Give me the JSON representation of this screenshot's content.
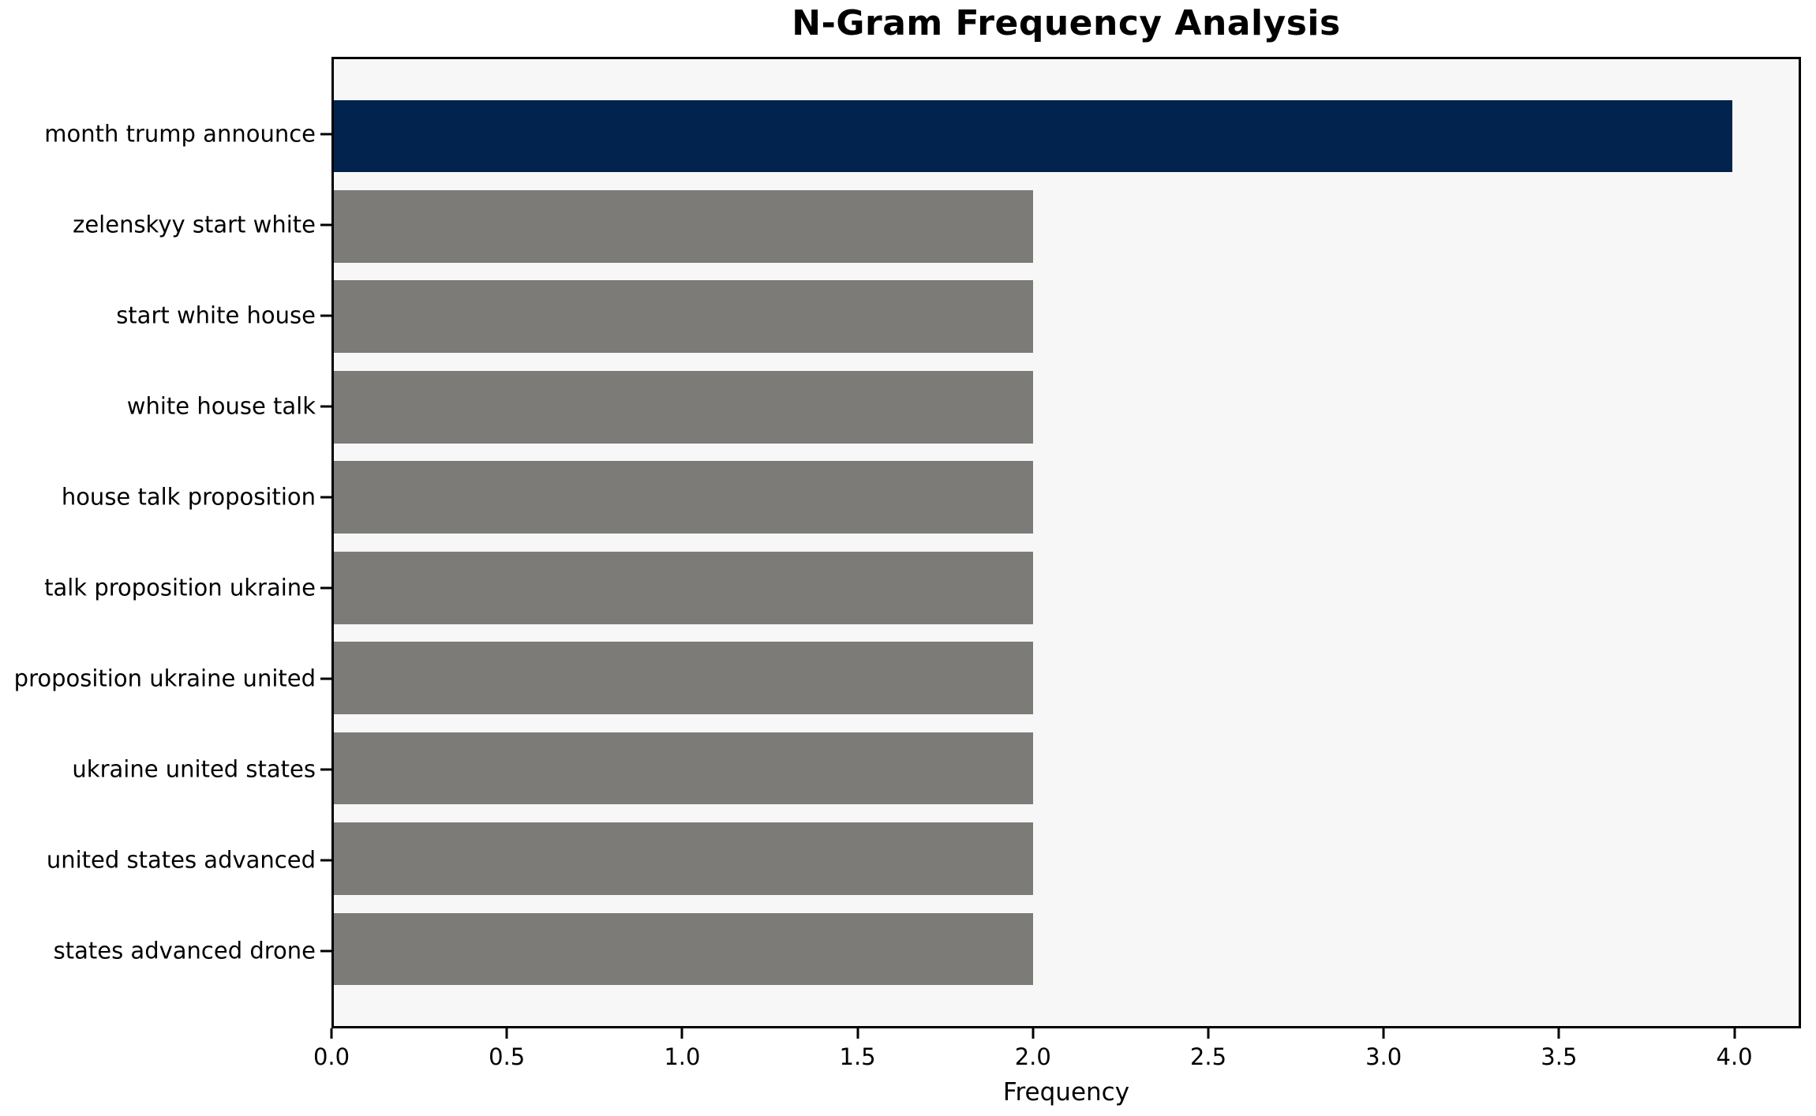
{
  "chart_data": {
    "type": "bar",
    "orientation": "horizontal",
    "title": "N-Gram Frequency Analysis",
    "xlabel": "Frequency",
    "ylabel": "",
    "categories": [
      "month trump announce",
      "zelenskyy start white",
      "start white house",
      "white house talk",
      "house talk proposition",
      "talk proposition ukraine",
      "proposition ukraine united",
      "ukraine united states",
      "united states advanced",
      "states advanced drone"
    ],
    "values": [
      4,
      2,
      2,
      2,
      2,
      2,
      2,
      2,
      2,
      2
    ],
    "bar_colors": [
      "#02234d",
      "#7c7b78",
      "#7c7b78",
      "#7c7b78",
      "#7c7b78",
      "#7c7b78",
      "#7c7b78",
      "#7c7b78",
      "#7c7b78",
      "#7c7b78"
    ],
    "highlight_color": "#02234d",
    "base_bar_color": "#7c7b78",
    "plot_background": "#f7f7f7",
    "figure_background": "#ffffff",
    "spine_color": "#000000",
    "xlim": [
      0,
      4.19
    ],
    "xticks": [
      {
        "value": 0.0,
        "label": "0.0"
      },
      {
        "value": 0.5,
        "label": "0.5"
      },
      {
        "value": 1.0,
        "label": "1.0"
      },
      {
        "value": 1.5,
        "label": "1.5"
      },
      {
        "value": 2.0,
        "label": "2.0"
      },
      {
        "value": 2.5,
        "label": "2.5"
      },
      {
        "value": 3.0,
        "label": "3.0"
      },
      {
        "value": 3.5,
        "label": "3.5"
      },
      {
        "value": 4.0,
        "label": "4.0"
      }
    ],
    "y_axis_units_span": 10.7,
    "y_first_center_units": 0.85,
    "bar_height_units": 0.8,
    "grid": false,
    "legend": null
  }
}
